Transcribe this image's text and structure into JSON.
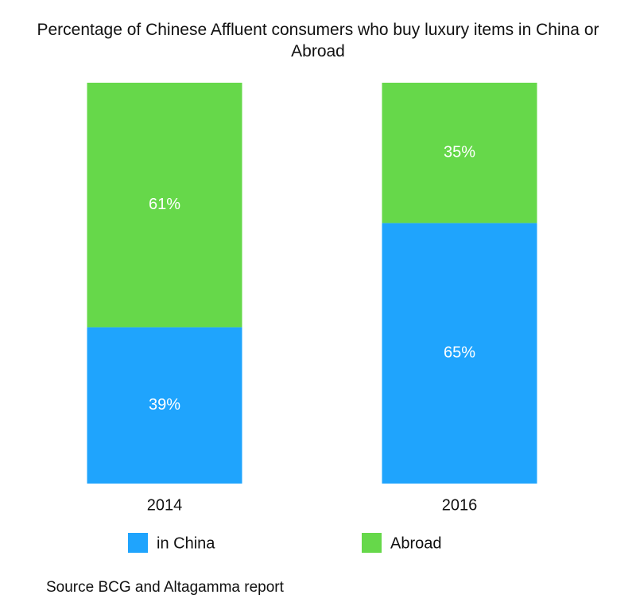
{
  "chart_data": {
    "type": "stacked-bar",
    "title": "Percentage of Chinese Affluent consumers who buy luxury items in China or Abroad",
    "categories": [
      "2014",
      "2016"
    ],
    "series": [
      {
        "name": "in China",
        "color": "#1fa4fd",
        "values": [
          39,
          65
        ],
        "value_labels": [
          "39%",
          "65%"
        ]
      },
      {
        "name": "Abroad",
        "color": "#66d84a",
        "values": [
          61,
          35
        ],
        "value_labels": [
          "61%",
          "35%"
        ]
      }
    ],
    "ylim": [
      0,
      100
    ],
    "legend": "bottom",
    "source": "Source BCG and Altagamma report"
  }
}
